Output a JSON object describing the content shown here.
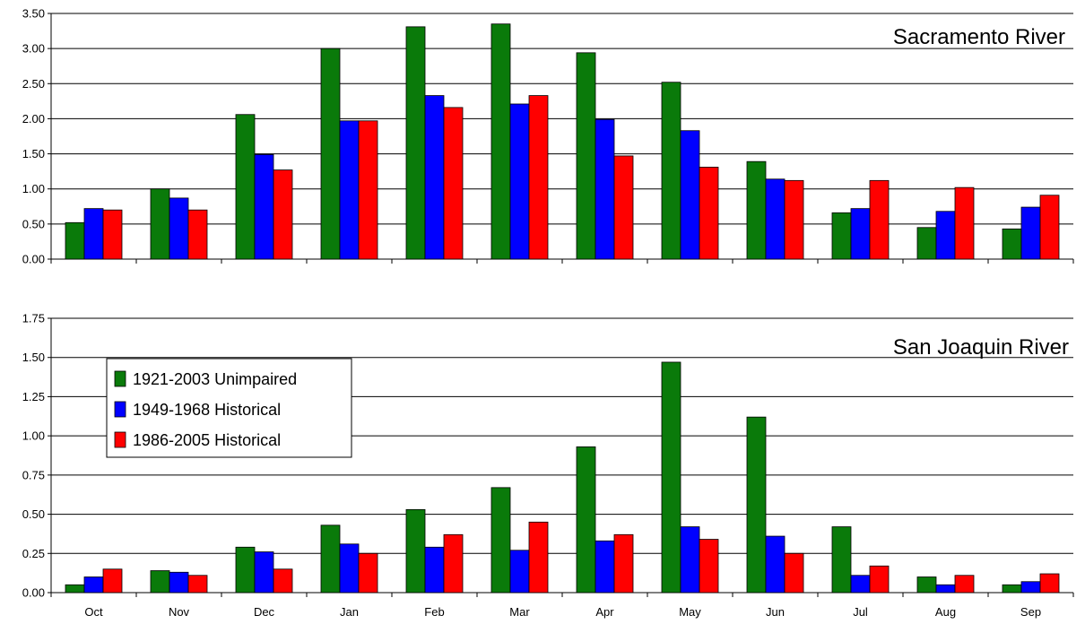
{
  "chart_data": [
    {
      "type": "bar",
      "title": "Sacramento River",
      "categories": [
        "Oct",
        "Nov",
        "Dec",
        "Jan",
        "Feb",
        "Mar",
        "Apr",
        "May",
        "Jun",
        "Jul",
        "Aug",
        "Sep"
      ],
      "ylim": [
        0,
        3.5
      ],
      "yticks": [
        "0.00",
        "0.50",
        "1.00",
        "1.50",
        "2.00",
        "2.50",
        "3.00",
        "3.50"
      ],
      "grid": true,
      "series": [
        {
          "name": "1921-2003 Unimpaired",
          "color": "#0a7a0a",
          "values": [
            0.52,
            1.0,
            2.06,
            3.0,
            3.31,
            3.35,
            2.94,
            2.52,
            1.39,
            0.66,
            0.45,
            0.43
          ]
        },
        {
          "name": "1949-1968 Historical",
          "color": "#0000ff",
          "values": [
            0.72,
            0.87,
            1.49,
            1.97,
            2.33,
            2.21,
            1.99,
            1.83,
            1.14,
            0.72,
            0.68,
            0.74
          ]
        },
        {
          "name": "1986-2005 Historical",
          "color": "#ff0000",
          "values": [
            0.7,
            0.7,
            1.27,
            1.97,
            2.16,
            2.33,
            1.47,
            1.31,
            1.12,
            1.12,
            1.02,
            0.91
          ]
        }
      ]
    },
    {
      "type": "bar",
      "title": "San Joaquin River",
      "categories": [
        "Oct",
        "Nov",
        "Dec",
        "Jan",
        "Feb",
        "Mar",
        "Apr",
        "May",
        "Jun",
        "Jul",
        "Aug",
        "Sep"
      ],
      "ylim": [
        0,
        1.75
      ],
      "yticks": [
        "0.00",
        "0.25",
        "0.50",
        "0.75",
        "1.00",
        "1.25",
        "1.50",
        "1.75"
      ],
      "grid": true,
      "legend": "top-left",
      "series": [
        {
          "name": "1921-2003 Unimpaired",
          "color": "#0a7a0a",
          "values": [
            0.05,
            0.14,
            0.29,
            0.43,
            0.53,
            0.67,
            0.93,
            1.47,
            1.12,
            0.42,
            0.1,
            0.05
          ]
        },
        {
          "name": "1949-1968 Historical",
          "color": "#0000ff",
          "values": [
            0.1,
            0.13,
            0.26,
            0.31,
            0.29,
            0.27,
            0.33,
            0.42,
            0.36,
            0.11,
            0.05,
            0.07
          ]
        },
        {
          "name": "1986-2005 Historical",
          "color": "#ff0000",
          "values": [
            0.15,
            0.11,
            0.15,
            0.25,
            0.37,
            0.45,
            0.37,
            0.34,
            0.25,
            0.17,
            0.11,
            0.12
          ]
        }
      ]
    }
  ]
}
